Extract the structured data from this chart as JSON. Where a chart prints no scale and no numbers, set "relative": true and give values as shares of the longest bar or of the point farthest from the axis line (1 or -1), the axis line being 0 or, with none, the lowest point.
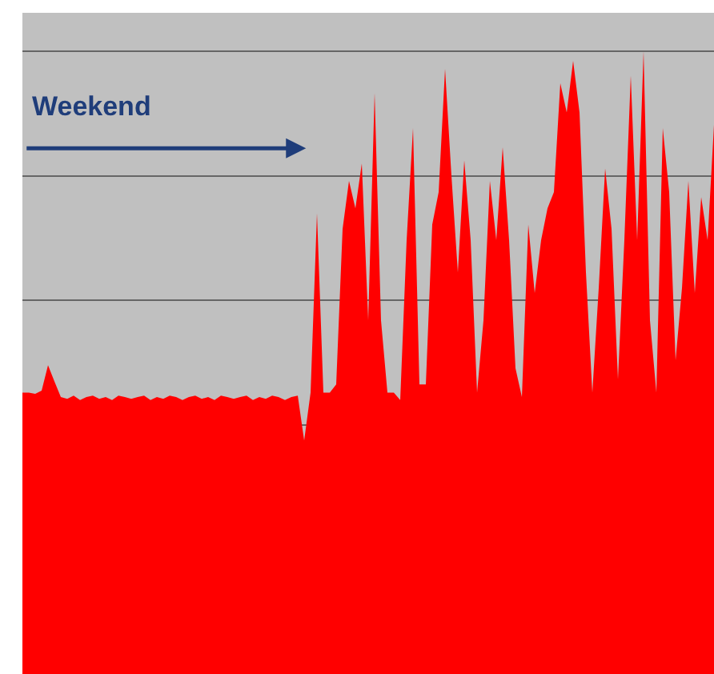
{
  "chart_data": {
    "type": "area",
    "relative": true,
    "grid": "y",
    "color": "#ff0000",
    "categories": [
      null,
      null,
      null,
      null,
      null,
      null,
      null,
      null,
      null,
      null,
      null,
      null,
      null,
      null,
      null,
      null,
      null,
      null,
      null,
      null,
      null,
      null,
      null,
      null,
      null,
      null,
      null,
      null,
      null,
      null,
      null,
      null,
      null,
      null,
      null,
      null,
      null,
      null,
      null,
      null,
      null,
      null,
      null,
      null,
      null,
      null,
      null,
      null,
      null,
      null,
      null,
      null,
      null,
      null,
      null,
      null,
      null,
      null,
      null,
      null,
      null,
      null,
      null,
      null,
      null,
      null,
      null,
      null,
      null,
      null,
      null,
      null,
      null,
      null,
      null,
      null,
      null,
      null,
      null,
      null,
      null,
      null,
      null,
      null,
      null,
      null,
      null,
      null,
      null,
      null,
      null,
      null,
      null,
      null,
      null,
      null,
      null,
      null,
      null,
      null,
      null,
      null,
      null,
      null,
      null,
      null,
      null,
      null,
      null
    ],
    "values": [
      0.452,
      0.452,
      0.45,
      0.455,
      0.496,
      0.47,
      0.445,
      0.442,
      0.447,
      0.44,
      0.445,
      0.447,
      0.442,
      0.445,
      0.44,
      0.447,
      0.445,
      0.442,
      0.445,
      0.447,
      0.44,
      0.445,
      0.442,
      0.447,
      0.445,
      0.44,
      0.445,
      0.447,
      0.442,
      0.445,
      0.44,
      0.447,
      0.445,
      0.442,
      0.445,
      0.447,
      0.44,
      0.445,
      0.442,
      0.447,
      0.445,
      0.44,
      0.445,
      0.447,
      0.375,
      0.452,
      0.74,
      0.452,
      0.452,
      0.465,
      0.715,
      0.792,
      0.748,
      0.82,
      0.568,
      0.933,
      0.568,
      0.452,
      0.452,
      0.44,
      0.697,
      0.877,
      0.465,
      0.465,
      0.722,
      0.774,
      0.972,
      0.8,
      0.645,
      0.825,
      0.697,
      0.452,
      0.568,
      0.792,
      0.697,
      0.846,
      0.697,
      0.491,
      0.445,
      0.722,
      0.612,
      0.697,
      0.748,
      0.774,
      0.949,
      0.902,
      0.985,
      0.902,
      0.645,
      0.452,
      0.62,
      0.812,
      0.715,
      0.473,
      0.697,
      0.961,
      0.697,
      1,
      0.568,
      0.452,
      0.877,
      0.774,
      0.504,
      0.62,
      0.792,
      0.612,
      0.766,
      0.697,
      0.882
    ],
    "annotations": [
      "Weekend"
    ]
  }
}
